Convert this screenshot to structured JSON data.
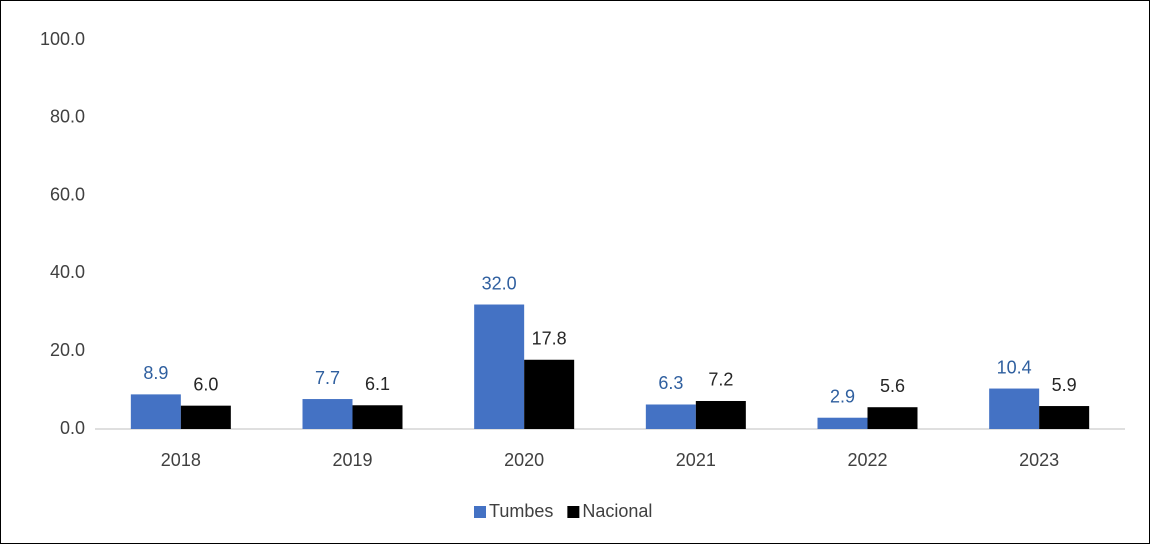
{
  "chart_data": {
    "type": "bar",
    "categories": [
      "2018",
      "2019",
      "2020",
      "2021",
      "2022",
      "2023"
    ],
    "series": [
      {
        "name": "Tumbes",
        "color": "#4472c4",
        "label_color": "#2f5f9f",
        "values": [
          8.9,
          7.7,
          32.0,
          6.3,
          2.9,
          10.4
        ],
        "value_labels": [
          "8.9",
          "7.7",
          "32.0",
          "6.3",
          "2.9",
          "10.4"
        ]
      },
      {
        "name": "Nacional",
        "color": "#000000",
        "label_color": "#262626",
        "values": [
          6.0,
          6.1,
          17.8,
          7.2,
          5.6,
          5.9
        ],
        "value_labels": [
          "6.0",
          "6.1",
          "17.8",
          "7.2",
          "5.6",
          "5.9"
        ]
      }
    ],
    "ylim": [
      0,
      100
    ],
    "yticks": [
      {
        "value": 0,
        "label": "0.0"
      },
      {
        "value": 20,
        "label": "20.0"
      },
      {
        "value": 40,
        "label": "40.0"
      },
      {
        "value": 60,
        "label": "60.0"
      },
      {
        "value": 80,
        "label": "80.0"
      },
      {
        "value": 100,
        "label": "100.0"
      }
    ],
    "grid": false,
    "legend": "bottom"
  }
}
